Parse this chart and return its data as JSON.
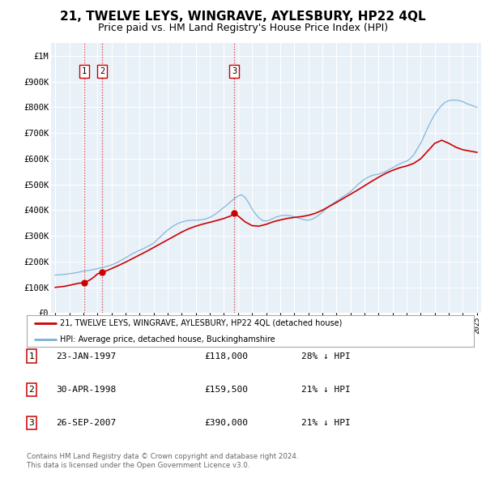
{
  "title": "21, TWELVE LEYS, WINGRAVE, AYLESBURY, HP22 4QL",
  "subtitle": "Price paid vs. HM Land Registry's House Price Index (HPI)",
  "title_fontsize": 11,
  "subtitle_fontsize": 9,
  "legend_line1": "21, TWELVE LEYS, WINGRAVE, AYLESBURY, HP22 4QL (detached house)",
  "legend_line2": "HPI: Average price, detached house, Buckinghamshire",
  "transactions": [
    {
      "num": 1,
      "date": "23-JAN-1997",
      "price": 118000,
      "hpi_diff": "28% ↓ HPI",
      "year": 1997.06
    },
    {
      "num": 2,
      "date": "30-APR-1998",
      "price": 159500,
      "hpi_diff": "21% ↓ HPI",
      "year": 1998.33
    },
    {
      "num": 3,
      "date": "26-SEP-2007",
      "price": 390000,
      "hpi_diff": "21% ↓ HPI",
      "year": 2007.73
    }
  ],
  "footer_line1": "Contains HM Land Registry data © Crown copyright and database right 2024.",
  "footer_line2": "This data is licensed under the Open Government Licence v3.0.",
  "property_color": "#cc0000",
  "hpi_color": "#7ab0d4",
  "vline_color": "#cc0000",
  "background_chart": "#e8f0f8",
  "background_fig": "#ffffff",
  "grid_color": "#ffffff",
  "ylim": [
    0,
    1050000
  ],
  "xlim_start": 1994.7,
  "xlim_end": 2025.3,
  "hpi_x": [
    1995.0,
    1995.25,
    1995.5,
    1995.75,
    1996.0,
    1996.25,
    1996.5,
    1996.75,
    1997.0,
    1997.25,
    1997.5,
    1997.75,
    1998.0,
    1998.25,
    1998.5,
    1998.75,
    1999.0,
    1999.25,
    1999.5,
    1999.75,
    2000.0,
    2000.25,
    2000.5,
    2000.75,
    2001.0,
    2001.25,
    2001.5,
    2001.75,
    2002.0,
    2002.25,
    2002.5,
    2002.75,
    2003.0,
    2003.25,
    2003.5,
    2003.75,
    2004.0,
    2004.25,
    2004.5,
    2004.75,
    2005.0,
    2005.25,
    2005.5,
    2005.75,
    2006.0,
    2006.25,
    2006.5,
    2006.75,
    2007.0,
    2007.25,
    2007.5,
    2007.75,
    2008.0,
    2008.25,
    2008.5,
    2008.75,
    2009.0,
    2009.25,
    2009.5,
    2009.75,
    2010.0,
    2010.25,
    2010.5,
    2010.75,
    2011.0,
    2011.25,
    2011.5,
    2011.75,
    2012.0,
    2012.25,
    2012.5,
    2012.75,
    2013.0,
    2013.25,
    2013.5,
    2013.75,
    2014.0,
    2014.25,
    2014.5,
    2014.75,
    2015.0,
    2015.25,
    2015.5,
    2015.75,
    2016.0,
    2016.25,
    2016.5,
    2016.75,
    2017.0,
    2017.25,
    2017.5,
    2017.75,
    2018.0,
    2018.25,
    2018.5,
    2018.75,
    2019.0,
    2019.25,
    2019.5,
    2019.75,
    2020.0,
    2020.25,
    2020.5,
    2020.75,
    2021.0,
    2021.25,
    2021.5,
    2021.75,
    2022.0,
    2022.25,
    2022.5,
    2022.75,
    2023.0,
    2023.25,
    2023.5,
    2023.75,
    2024.0,
    2024.25,
    2024.5,
    2024.75,
    2025.0
  ],
  "hpi_y": [
    148000,
    149000,
    150000,
    151000,
    153000,
    155000,
    157000,
    160000,
    163000,
    165000,
    167000,
    170000,
    173000,
    176000,
    179000,
    183000,
    187000,
    193000,
    199000,
    207000,
    215000,
    223000,
    231000,
    238000,
    244000,
    250000,
    257000,
    264000,
    272000,
    285000,
    298000,
    311000,
    323000,
    333000,
    342000,
    349000,
    354000,
    358000,
    360000,
    361000,
    361000,
    362000,
    364000,
    367000,
    372000,
    380000,
    389000,
    400000,
    411000,
    422000,
    434000,
    445000,
    455000,
    460000,
    450000,
    430000,
    405000,
    385000,
    370000,
    360000,
    358000,
    362000,
    368000,
    374000,
    378000,
    380000,
    380000,
    378000,
    374000,
    370000,
    366000,
    363000,
    361000,
    365000,
    372000,
    381000,
    392000,
    404000,
    416000,
    426000,
    435000,
    444000,
    453000,
    462000,
    472000,
    485000,
    498000,
    510000,
    520000,
    528000,
    534000,
    538000,
    540000,
    545000,
    550000,
    558000,
    565000,
    573000,
    580000,
    586000,
    591000,
    600000,
    615000,
    638000,
    660000,
    690000,
    720000,
    748000,
    772000,
    792000,
    808000,
    820000,
    826000,
    828000,
    828000,
    826000,
    822000,
    815000,
    810000,
    805000,
    800000
  ],
  "prop_x": [
    1995.0,
    1995.17,
    1995.33,
    1995.5,
    1995.67,
    1995.83,
    1996.0,
    1996.17,
    1996.33,
    1996.5,
    1996.67,
    1996.83,
    1997.06,
    1997.25,
    1997.5,
    1997.75,
    1998.0,
    1998.33,
    1998.67,
    1999.0,
    1999.5,
    2000.0,
    2000.5,
    2001.0,
    2001.5,
    2002.0,
    2002.5,
    2003.0,
    2003.5,
    2004.0,
    2004.5,
    2005.0,
    2005.5,
    2006.0,
    2006.5,
    2007.0,
    2007.5,
    2007.73,
    2008.0,
    2008.5,
    2009.0,
    2009.5,
    2010.0,
    2010.5,
    2011.0,
    2011.5,
    2012.0,
    2012.5,
    2013.0,
    2013.5,
    2014.0,
    2014.5,
    2015.0,
    2015.5,
    2016.0,
    2016.5,
    2017.0,
    2017.5,
    2018.0,
    2018.5,
    2019.0,
    2019.5,
    2020.0,
    2020.5,
    2021.0,
    2021.5,
    2022.0,
    2022.5,
    2023.0,
    2023.5,
    2024.0,
    2024.5,
    2025.0
  ],
  "prop_y": [
    100000,
    101000,
    102000,
    103000,
    104000,
    106000,
    108000,
    110000,
    112000,
    114000,
    116000,
    117000,
    118000,
    123000,
    130000,
    140000,
    152000,
    159500,
    165000,
    173000,
    185000,
    198000,
    212000,
    226000,
    240000,
    255000,
    270000,
    285000,
    300000,
    315000,
    328000,
    338000,
    346000,
    353000,
    360000,
    368000,
    378000,
    390000,
    378000,
    355000,
    340000,
    338000,
    345000,
    355000,
    362000,
    368000,
    372000,
    375000,
    380000,
    388000,
    400000,
    415000,
    430000,
    446000,
    462000,
    478000,
    495000,
    512000,
    528000,
    543000,
    555000,
    565000,
    572000,
    582000,
    600000,
    630000,
    660000,
    672000,
    660000,
    645000,
    635000,
    630000,
    625000
  ]
}
